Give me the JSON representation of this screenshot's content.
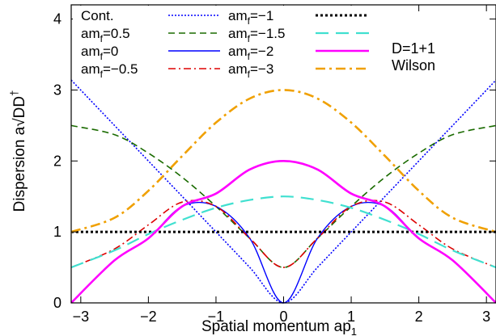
{
  "chart_data": {
    "type": "line",
    "title": "",
    "xlabel": "Spatial momentum ap",
    "xlabel_sub": "1",
    "ylabel": "Dispersion a√DD",
    "ylabel_sup": "†",
    "xlim": [
      -3.14159,
      3.14159
    ],
    "ylim": [
      0,
      4.2
    ],
    "xticks": [
      "−3",
      "−2",
      "−1",
      "0",
      "1",
      "2",
      "3"
    ],
    "xtick_values": [
      -3,
      -2,
      -1,
      0,
      1,
      2,
      3
    ],
    "yticks": [
      "0",
      "1",
      "2",
      "3",
      "4"
    ],
    "ytick_values": [
      0,
      1,
      2,
      3,
      4
    ],
    "grid": false,
    "legend_placement": "top",
    "annotation": {
      "line1": "D=1+1",
      "line2": "Wilson"
    },
    "x": [
      -3.14159,
      -2.5,
      -2,
      -1.5,
      -1,
      -0.5,
      0,
      0.5,
      1,
      1.5,
      2,
      2.5,
      3.14159
    ],
    "series": [
      {
        "name": "Cont.",
        "name_main": "Cont.",
        "name_sub": "",
        "name_tail": "",
        "color": "#0000ff",
        "style": "dotted",
        "width": 1.6,
        "values": [
          3.14,
          2.5,
          2.0,
          1.5,
          1.0,
          0.5,
          0.0,
          0.5,
          1.0,
          1.5,
          2.0,
          2.5,
          3.14
        ]
      },
      {
        "name": "am_f=0.5",
        "name_main": "am",
        "name_sub": "f",
        "name_tail": "=0.5",
        "color": "#1a6b00",
        "style": "dashed",
        "width": 1.6,
        "values": [
          2.5,
          2.37,
          2.11,
          1.77,
          1.36,
          0.91,
          0.5,
          0.91,
          1.36,
          1.77,
          2.11,
          2.37,
          2.5
        ]
      },
      {
        "name": "am_f=0",
        "name_main": "am",
        "name_sub": "f",
        "name_tail": "=0",
        "color": "#0000ff",
        "style": "solid",
        "width": 1.4,
        "values": [
          0.0,
          0.6,
          0.91,
          1.36,
          1.36,
          0.91,
          0.0,
          0.91,
          1.36,
          1.36,
          0.91,
          0.6,
          0.0
        ]
      },
      {
        "name": "am_f=−0.5",
        "name_main": "am",
        "name_sub": "f",
        "name_tail": "=−0.5",
        "color": "#dd0000",
        "style": "dashdot",
        "width": 1.6,
        "values": [
          0.5,
          0.76,
          1.1,
          1.42,
          1.36,
          0.91,
          0.5,
          0.91,
          1.36,
          1.42,
          1.1,
          0.76,
          0.5
        ]
      },
      {
        "name": "am_f=−1",
        "name_main": "am",
        "name_sub": "f",
        "name_tail": "=−1",
        "color": "#000000",
        "style": "dotted-bold",
        "width": 3,
        "values": [
          1,
          1,
          1,
          1,
          1,
          1,
          1,
          1,
          1,
          1,
          1,
          1,
          1
        ]
      },
      {
        "name": "am_f=−1.5",
        "name_main": "am",
        "name_sub": "f",
        "name_tail": "=−1.5",
        "color": "#40e0d0",
        "style": "longdash",
        "width": 2.2,
        "values": [
          0.5,
          0.74,
          0.97,
          1.17,
          1.34,
          1.45,
          1.5,
          1.45,
          1.34,
          1.17,
          0.97,
          0.74,
          0.5
        ]
      },
      {
        "name": "am_f=−2",
        "name_main": "am",
        "name_sub": "f",
        "name_tail": "=−2",
        "color": "#ff00ff",
        "style": "solid-bold",
        "width": 2.6,
        "values": [
          0,
          0.6,
          0.91,
          1.36,
          1.54,
          1.88,
          2.0,
          1.88,
          1.54,
          1.36,
          0.91,
          0.6,
          0
        ]
      },
      {
        "name": "am_f=−3",
        "name_main": "am",
        "name_sub": "f",
        "name_tail": "=−3",
        "color": "#f0a000",
        "style": "dashdot-bold",
        "width": 2.6,
        "values": [
          1,
          1.2,
          1.58,
          2.07,
          2.54,
          2.88,
          3.0,
          2.88,
          2.54,
          2.07,
          1.58,
          1.2,
          1
        ]
      }
    ]
  }
}
